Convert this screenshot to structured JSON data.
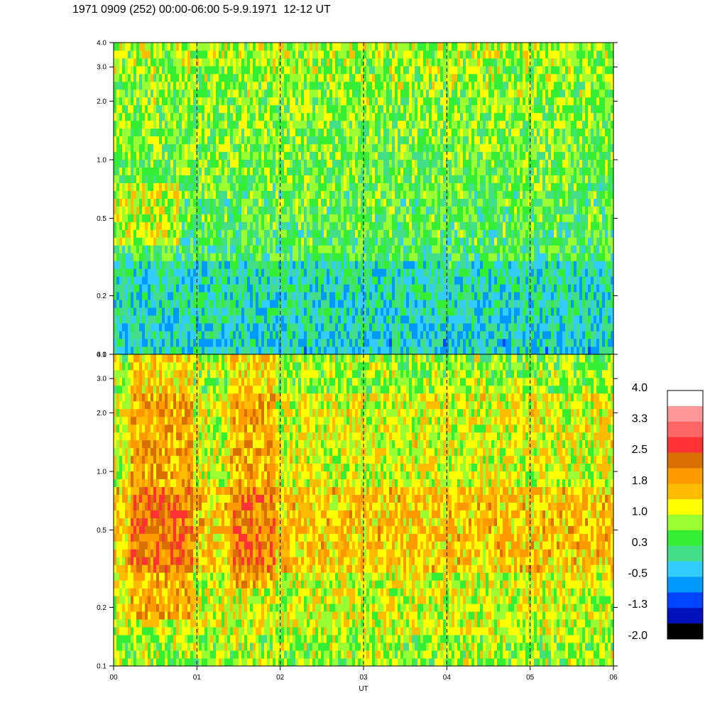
{
  "header": {
    "title": "1971 0909 (252) 00:00-06:00 5-9.9.1971  12-12 UT"
  },
  "chart_data": [
    {
      "type": "heatmap",
      "panel": "top",
      "x_range": [
        0,
        6
      ],
      "y_scale": "log",
      "ylim": [
        0.1,
        4.0
      ],
      "y_ticks": [
        "4.0",
        "3.0",
        "2.0",
        "1.0",
        "0.5",
        "0.2",
        "0.1"
      ],
      "y_tick_values": [
        4.0,
        3.0,
        2.0,
        1.0,
        0.5,
        0.2,
        0.1
      ],
      "x_gridlines": [
        1,
        2,
        3,
        4,
        5
      ],
      "dominant_levels": "-0.5 to 1.0"
    },
    {
      "type": "heatmap",
      "panel": "bottom",
      "x_range": [
        0,
        6
      ],
      "y_scale": "log",
      "ylim": [
        0.1,
        4.0
      ],
      "y_ticks": [
        "4.0",
        "3.0",
        "2.0",
        "1.0",
        "0.5",
        "0.2",
        "0.1"
      ],
      "y_tick_values": [
        4.0,
        3.0,
        2.0,
        1.0,
        0.5,
        0.2,
        0.1
      ],
      "x_gridlines": [
        1,
        2,
        3,
        4,
        5
      ],
      "x_ticks": [
        "00",
        "01",
        "02",
        "03",
        "04",
        "05",
        "06"
      ],
      "xlabel": "UT",
      "dominant_levels": "1.0 to 2.5"
    }
  ],
  "colorbar": {
    "labels": [
      "4.0",
      "3.3",
      "2.5",
      "1.8",
      "1.0",
      "0.3",
      "-0.5",
      "-1.3",
      "-2.0"
    ],
    "colors": [
      "#ffffff",
      "#ff9999",
      "#ff6666",
      "#ff3333",
      "#d87000",
      "#ff9900",
      "#ffbb00",
      "#ffff00",
      "#99ff33",
      "#33ee33",
      "#44dd88",
      "#33ccff",
      "#0099ff",
      "#0044ff",
      "#0011bb",
      "#000000"
    ]
  }
}
